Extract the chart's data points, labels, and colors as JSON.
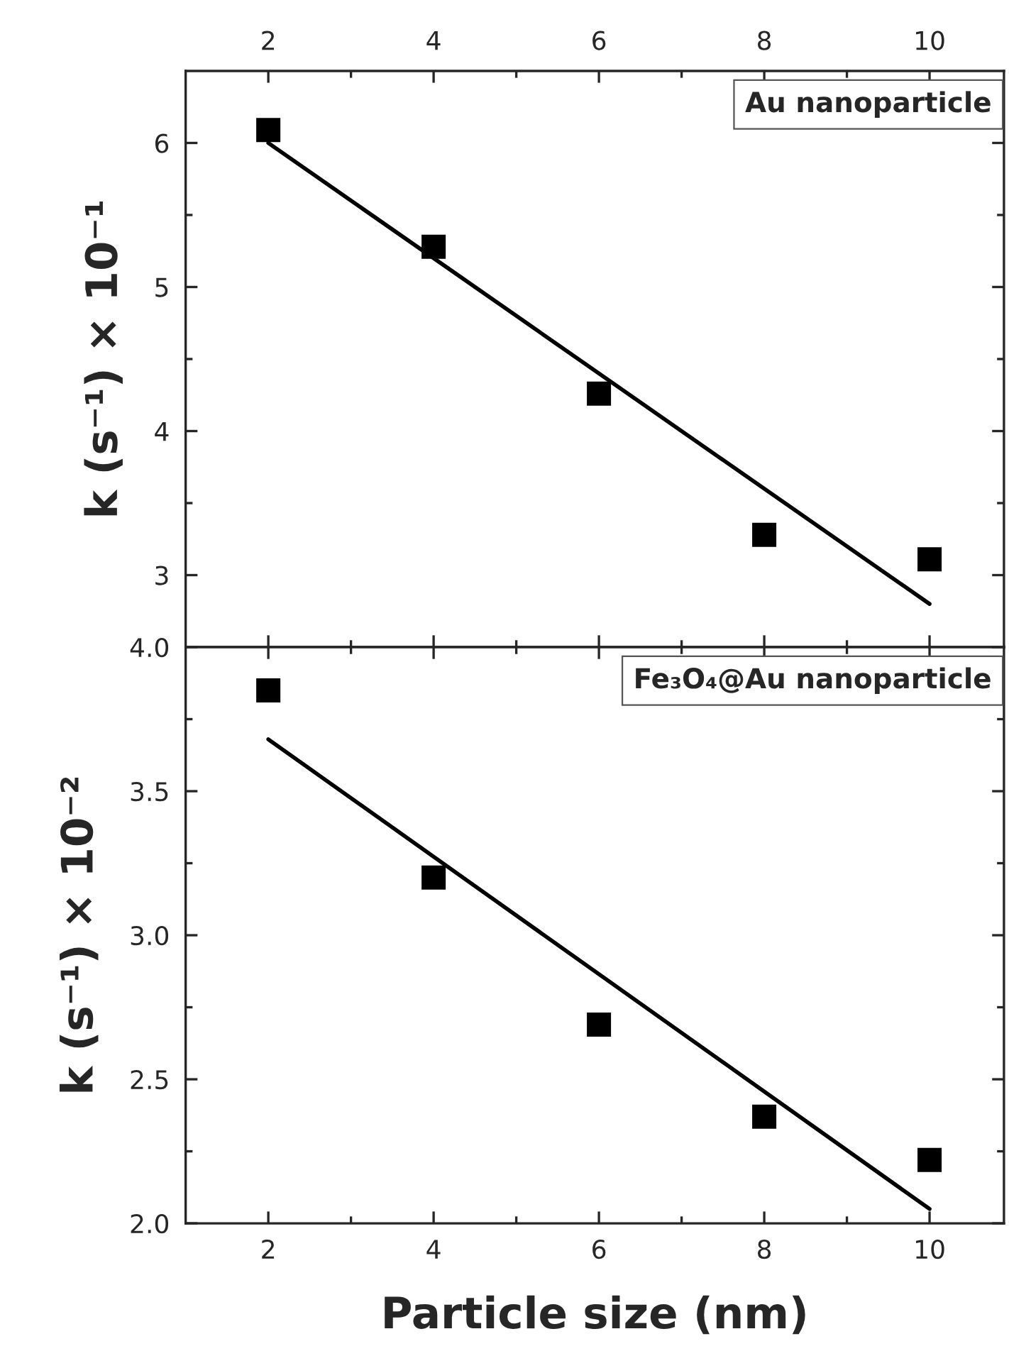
{
  "chart_data": [
    {
      "type": "scatter",
      "ylabel": "k (s⁻¹) × 10⁻¹",
      "annotations": [
        "Au nanoparticle"
      ],
      "marker": "square",
      "legend": false,
      "grid": false,
      "xlim": [
        1,
        10.9
      ],
      "xticks": [
        2,
        {
          "value": 3,
          "label": null
        },
        4,
        {
          "value": 5,
          "label": null
        },
        6,
        {
          "value": 7,
          "label": null
        },
        8,
        {
          "value": 9,
          "label": null
        },
        10
      ],
      "ylim": [
        2.5,
        6.5
      ],
      "yticks": [
        3,
        {
          "value": 3.5,
          "label": null
        },
        4,
        {
          "value": 4.5,
          "label": null
        },
        5,
        {
          "value": 5.5,
          "label": null
        },
        6
      ],
      "series": [
        {
          "color": "#000000",
          "x": [
            2,
            4,
            6,
            8,
            10
          ],
          "values": [
            6.09,
            5.28,
            4.26,
            3.28,
            3.11
          ]
        },
        {
          "type": "line",
          "color": "#000000",
          "marker": "none",
          "x": [
            2,
            10
          ],
          "values": [
            6.0,
            2.8
          ]
        }
      ]
    },
    {
      "type": "scatter",
      "ylabel": "k (s⁻¹) × 10⁻²",
      "xlabel": "Particle size (nm)",
      "annotations": [
        "Fe₃O₄@Au nanoparticle"
      ],
      "marker": "square",
      "legend": false,
      "grid": false,
      "xlim": [
        1,
        10.9
      ],
      "xticks": [
        2,
        {
          "value": 3,
          "label": null
        },
        4,
        {
          "value": 5,
          "label": null
        },
        6,
        {
          "value": 7,
          "label": null
        },
        8,
        {
          "value": 9,
          "label": null
        },
        10
      ],
      "ylim": [
        2.0,
        4.0
      ],
      "yticks": [
        {
          "value": 2.0,
          "label": "2.0"
        },
        {
          "value": 2.25,
          "label": null
        },
        2.5,
        {
          "value": 2.75,
          "label": null
        },
        {
          "value": 3.0,
          "label": "3.0"
        },
        {
          "value": 3.25,
          "label": null
        },
        3.5,
        {
          "value": 3.75,
          "label": null
        },
        {
          "value": 4.0,
          "label": "4.0"
        }
      ],
      "series": [
        {
          "color": "#000000",
          "x": [
            2,
            4,
            6,
            8,
            10
          ],
          "values": [
            3.85,
            3.2,
            2.69,
            2.37,
            2.22
          ]
        },
        {
          "type": "line",
          "color": "#000000",
          "marker": "none",
          "x": [
            2,
            10
          ],
          "values": [
            3.68,
            2.05
          ]
        }
      ]
    }
  ]
}
